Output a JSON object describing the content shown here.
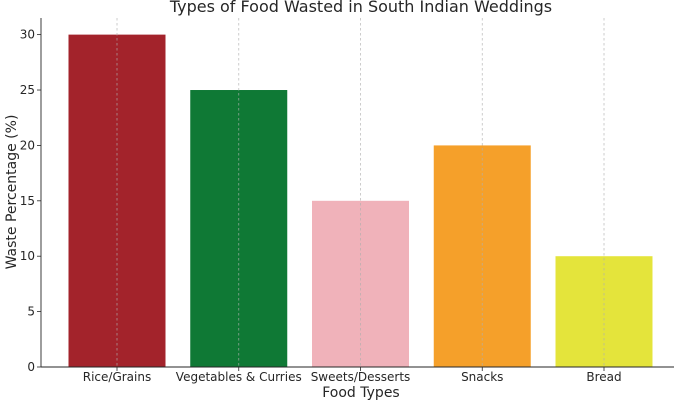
{
  "chart_data": {
    "type": "bar",
    "title": "Types of Food Wasted in South Indian Weddings",
    "xlabel": "Food Types",
    "ylabel": "Waste Percentage (%)",
    "categories": [
      "Rice/Grains",
      "Vegetables & Curries",
      "Sweets/Desserts",
      "Snacks",
      "Bread"
    ],
    "values": [
      30,
      25,
      15,
      20,
      10
    ],
    "colors": [
      "#a3232b",
      "#0f7935",
      "#f0b2ba",
      "#f5a02a",
      "#e4e43b"
    ],
    "ylim": [
      0,
      31.5
    ],
    "yticks": [
      0,
      5,
      10,
      15,
      20,
      25,
      30
    ],
    "grid": "x-dashed"
  }
}
